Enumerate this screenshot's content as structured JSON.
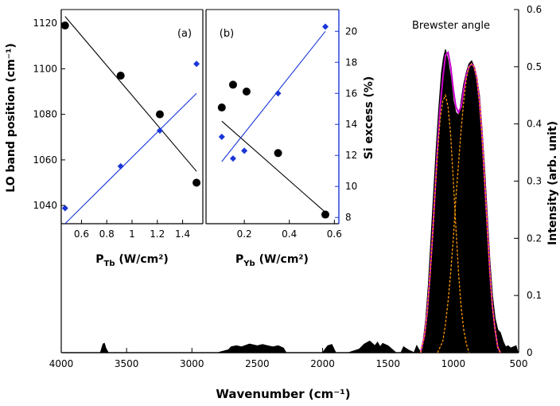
{
  "colors": {
    "spectrum": "#000000",
    "fit_total": "#cc00cc",
    "fit_components": "#ff9900",
    "series_black": "#000000",
    "series_blue": "#1a36d8",
    "axis_blue": "#1a36d8"
  },
  "chart_data": [
    {
      "type": "line",
      "panel": "main",
      "title": "Brewster angle",
      "xlabel": "Wavenumber (cm⁻¹)",
      "ylabel": "Intensity (arb. unit)",
      "xlim": [
        4000,
        500
      ],
      "ylim": [
        0,
        0.6
      ],
      "x_reversed": true,
      "y_axis_side": "right",
      "xticks": [
        4000,
        3500,
        3000,
        2500,
        2000,
        1500,
        1000,
        500
      ],
      "xtick_labels": [
        "4000",
        "3500",
        "3000",
        "2500",
        "2000",
        "1500",
        "1000",
        "500"
      ],
      "yticks": [
        0,
        0.1,
        0.2,
        0.3,
        0.4,
        0.5,
        0.6
      ],
      "ytick_labels": [
        "0",
        "0.1",
        "0.2",
        "0.3",
        "0.4",
        "0.5",
        "0.6"
      ],
      "series": [
        {
          "type": "area",
          "x": [
            3990,
            3700,
            3680,
            3670,
            3660,
            3640,
            3000,
            2800,
            2720,
            2700,
            2660,
            2620,
            2560,
            2500,
            2460,
            2420,
            2380,
            2340,
            2300,
            2280,
            2000,
            1960,
            1930,
            1900,
            1800,
            1720,
            1680,
            1640,
            1620,
            1600,
            1580,
            1560,
            1540,
            1500,
            1440,
            1400,
            1380,
            1340,
            1300,
            1280,
            1250,
            1230,
            1210,
            1190,
            1170,
            1150,
            1130,
            1110,
            1090,
            1075,
            1060,
            1040,
            1020,
            1000,
            980,
            960,
            950,
            940,
            920,
            900,
            880,
            860,
            840,
            820,
            800,
            780,
            760,
            740,
            720,
            700,
            680,
            660,
            640,
            620,
            600,
            580,
            560,
            540,
            520,
            505
          ],
          "y": [
            0.0,
            0.0,
            0.015,
            0.016,
            0.008,
            0.0,
            0.0,
            0.0,
            0.005,
            0.01,
            0.012,
            0.01,
            0.015,
            0.012,
            0.014,
            0.012,
            0.01,
            0.012,
            0.008,
            0.0,
            0.0,
            0.012,
            0.014,
            0.0,
            0.0,
            0.006,
            0.015,
            0.02,
            0.016,
            0.012,
            0.018,
            0.01,
            0.016,
            0.012,
            0.0,
            0.0,
            0.01,
            0.004,
            0.0,
            0.012,
            0.0,
            0.02,
            0.06,
            0.12,
            0.2,
            0.28,
            0.36,
            0.43,
            0.49,
            0.515,
            0.53,
            0.51,
            0.48,
            0.44,
            0.42,
            0.415,
            0.42,
            0.44,
            0.47,
            0.49,
            0.505,
            0.51,
            0.5,
            0.48,
            0.45,
            0.39,
            0.32,
            0.24,
            0.16,
            0.1,
            0.06,
            0.04,
            0.035,
            0.02,
            0.01,
            0.012,
            0.008,
            0.01,
            0.012,
            0.0
          ]
        },
        {
          "name": "",
          "type": "fit",
          "x": [
            1250,
            1220,
            1200,
            1180,
            1160,
            1140,
            1120,
            1100,
            1080,
            1060,
            1040,
            1020,
            1000,
            980,
            960,
            940,
            920,
            900,
            880,
            860,
            840,
            820,
            800,
            780,
            760,
            740,
            720,
            700,
            680,
            660,
            640
          ],
          "y": [
            0.0,
            0.03,
            0.07,
            0.13,
            0.2,
            0.28,
            0.36,
            0.43,
            0.48,
            0.52,
            0.525,
            0.5,
            0.46,
            0.43,
            0.42,
            0.43,
            0.46,
            0.485,
            0.5,
            0.505,
            0.5,
            0.48,
            0.44,
            0.38,
            0.3,
            0.22,
            0.14,
            0.08,
            0.04,
            0.01,
            0.0
          ]
        },
        {
          "type": "fit-component",
          "x": [
            1250,
            1220,
            1200,
            1180,
            1160,
            1140,
            1120,
            1100,
            1080,
            1060,
            1040,
            1020,
            1000,
            980,
            960,
            940,
            920,
            900,
            880
          ],
          "y": [
            0.0,
            0.03,
            0.07,
            0.13,
            0.2,
            0.28,
            0.35,
            0.41,
            0.44,
            0.45,
            0.43,
            0.38,
            0.3,
            0.22,
            0.14,
            0.08,
            0.04,
            0.015,
            0.0
          ]
        },
        {
          "type": "fit-component",
          "x": [
            1120,
            1100,
            1080,
            1060,
            1040,
            1020,
            1000,
            980,
            960,
            940,
            920,
            900,
            880,
            860,
            840,
            820,
            800,
            780,
            760,
            740,
            720,
            700,
            680,
            660,
            640
          ],
          "y": [
            0.0,
            0.01,
            0.02,
            0.05,
            0.09,
            0.14,
            0.2,
            0.27,
            0.33,
            0.39,
            0.44,
            0.48,
            0.5,
            0.505,
            0.5,
            0.48,
            0.44,
            0.38,
            0.3,
            0.22,
            0.14,
            0.08,
            0.04,
            0.01,
            0.0
          ]
        }
      ]
    },
    {
      "type": "scatter",
      "panel": "a",
      "annotation": "(a)",
      "xlabel_main": "P",
      "xlabel_sub": "Tb",
      "xlabel_rest": " (W/cm²)",
      "ylabel": "LO band position (cm⁻¹)",
      "xlim": [
        0.44,
        1.56
      ],
      "ylim": [
        1032,
        1126
      ],
      "xticks": [
        0.6,
        0.8,
        1.0,
        1.2,
        1.4
      ],
      "xtick_labels": [
        "0.6",
        "0.8",
        "1",
        "1.2",
        "1.4"
      ],
      "yticks": [
        1040,
        1060,
        1080,
        1100,
        1120
      ],
      "ytick_labels": [
        "1040",
        "1060",
        "1080",
        "1100",
        "1120"
      ],
      "right_ylim": [
        7.6,
        21.4
      ],
      "series": [
        {
          "color": "black",
          "marker": "circle",
          "axis": "left",
          "x": [
            0.47,
            0.91,
            1.22,
            1.51
          ],
          "y": [
            1119,
            1097,
            1080,
            1050
          ],
          "fit_line": {
            "x": [
              0.47,
              1.51
            ],
            "y": [
              1123,
              1055
            ]
          }
        },
        {
          "color": "blue",
          "marker": "diamond",
          "axis": "right",
          "x": [
            0.47,
            0.91,
            1.22,
            1.51
          ],
          "y": [
            8.6,
            11.3,
            13.6,
            17.9
          ],
          "fit_line": {
            "x": [
              0.47,
              1.51
            ],
            "y": [
              7.6,
              16.0
            ]
          }
        }
      ]
    },
    {
      "type": "scatter",
      "panel": "b",
      "annotation": "(b)",
      "xlabel_main": "P",
      "xlabel_sub": "Yb",
      "xlabel_rest": " (W/cm²)",
      "ylabel": "Si excess (%)",
      "y_axis_side": "right",
      "xlim": [
        0.03,
        0.62
      ],
      "ylim": [
        7.6,
        21.4
      ],
      "xticks": [
        0.2,
        0.4,
        0.6
      ],
      "xtick_labels": [
        "0.2",
        "0.4",
        "0.6"
      ],
      "yticks": [
        8,
        10,
        12,
        14,
        16,
        18,
        20
      ],
      "ytick_labels": [
        "8",
        "10",
        "12",
        "14",
        "16",
        "18",
        "20"
      ],
      "left_ylim": [
        1032,
        1126
      ],
      "series": [
        {
          "color": "black",
          "marker": "circle",
          "axis": "left",
          "x": [
            0.1,
            0.15,
            0.21,
            0.35,
            0.56
          ],
          "y": [
            1083,
            1093,
            1090,
            1063,
            1036
          ],
          "fit_line": {
            "x": [
              0.1,
              0.56
            ],
            "y": [
              1077,
              1037
            ]
          }
        },
        {
          "color": "blue",
          "marker": "diamond",
          "axis": "right",
          "x": [
            0.1,
            0.15,
            0.2,
            0.35,
            0.56
          ],
          "y": [
            13.2,
            11.8,
            12.3,
            16.0,
            20.3
          ],
          "fit_line": {
            "x": [
              0.1,
              0.56
            ],
            "y": [
              11.6,
              20.0
            ]
          }
        }
      ]
    }
  ]
}
